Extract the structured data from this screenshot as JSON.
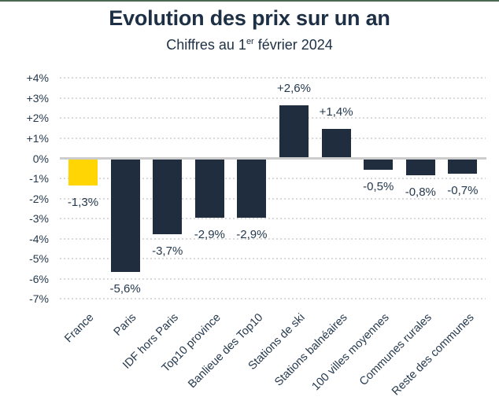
{
  "header": {
    "title": "Evolution des prix sur un an",
    "subtitle_prefix": "Chiffres au 1",
    "subtitle_sup": "er",
    "subtitle_suffix": " février 2024"
  },
  "chart_data": {
    "type": "bar",
    "title": "Evolution des prix sur un an",
    "subtitle": "Chiffres au 1er février 2024",
    "categories": [
      "France",
      "Paris",
      "IDF hors Paris",
      "Top10 province",
      "Banlieue des Top10",
      "Stations de ski",
      "Stations balnéaires",
      "100 villes moyennes",
      "Communes rurales",
      "Reste des communes"
    ],
    "values": [
      -1.3,
      -5.6,
      -3.7,
      -2.9,
      -2.9,
      2.6,
      1.4,
      -0.5,
      -0.8,
      -0.7
    ],
    "value_labels": [
      "-1,3%",
      "-5,6%",
      "-3,7%",
      "-2,9%",
      "-2,9%",
      "+2,6%",
      "+1,4%",
      "-0,5%",
      "-0,8%",
      "-0,7%"
    ],
    "yticks": [
      "+4%",
      "+3%",
      "+2%",
      "+1%",
      "0%",
      "-1%",
      "-2%",
      "-3%",
      "-4%",
      "-5%",
      "-6%",
      "-7%"
    ],
    "ytick_values": [
      4,
      3,
      2,
      1,
      0,
      -1,
      -2,
      -3,
      -4,
      -5,
      -6,
      -7
    ],
    "ylim": [
      -7,
      4
    ],
    "xlabel": "",
    "ylabel": "",
    "grid": "horizontal-dotted",
    "legend": "none",
    "colors": {
      "bar_default": "#1f2d3e",
      "bar_highlight": "#ffd504",
      "highlight_index": 0,
      "text": "#25394e",
      "title_text": "#1d3045",
      "gridline": "#d9d9d9",
      "zero_line": "#cccccc",
      "top_accent": "#4b6950"
    }
  }
}
